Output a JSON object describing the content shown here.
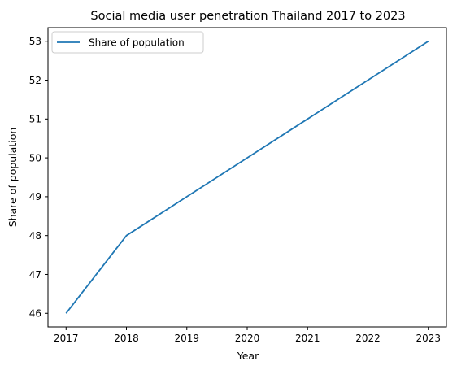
{
  "chart_data": {
    "type": "line",
    "title": "Social media user penetration Thailand 2017 to 2023",
    "xlabel": "Year",
    "ylabel": "Share of population",
    "x": [
      2017,
      2018,
      2019,
      2020,
      2021,
      2022,
      2023
    ],
    "series": [
      {
        "name": "Share of population",
        "values": [
          46,
          48,
          49,
          50,
          51,
          52,
          53
        ],
        "color": "#1f77b4"
      }
    ],
    "xlim": [
      2016.7,
      2023.3
    ],
    "ylim": [
      45.65,
      53.35
    ],
    "xticks": [
      "2017",
      "2018",
      "2019",
      "2020",
      "2021",
      "2022",
      "2023"
    ],
    "yticks": [
      "46",
      "47",
      "48",
      "49",
      "50",
      "51",
      "52",
      "53"
    ],
    "grid": false,
    "legend_position": "top-left"
  }
}
